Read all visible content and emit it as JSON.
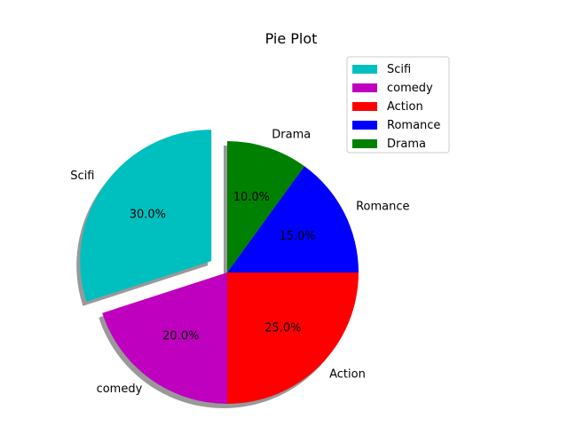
{
  "chart_data": {
    "type": "pie",
    "title": "Pie Plot",
    "legend_position": "top-right",
    "explode": "Scifi",
    "shadow": true,
    "slices": [
      {
        "label": "Scifi",
        "value": 30,
        "pct_label": "30.0%",
        "color": "#00bfbf"
      },
      {
        "label": "comedy",
        "value": 20,
        "pct_label": "20.0%",
        "color": "#bf00bf"
      },
      {
        "label": "Action",
        "value": 25,
        "pct_label": "25.0%",
        "color": "#ff0000"
      },
      {
        "label": "Romance",
        "value": 15,
        "pct_label": "15.0%",
        "color": "#0000ff"
      },
      {
        "label": "Drama",
        "value": 10,
        "pct_label": "10.0%",
        "color": "#008000"
      }
    ]
  }
}
